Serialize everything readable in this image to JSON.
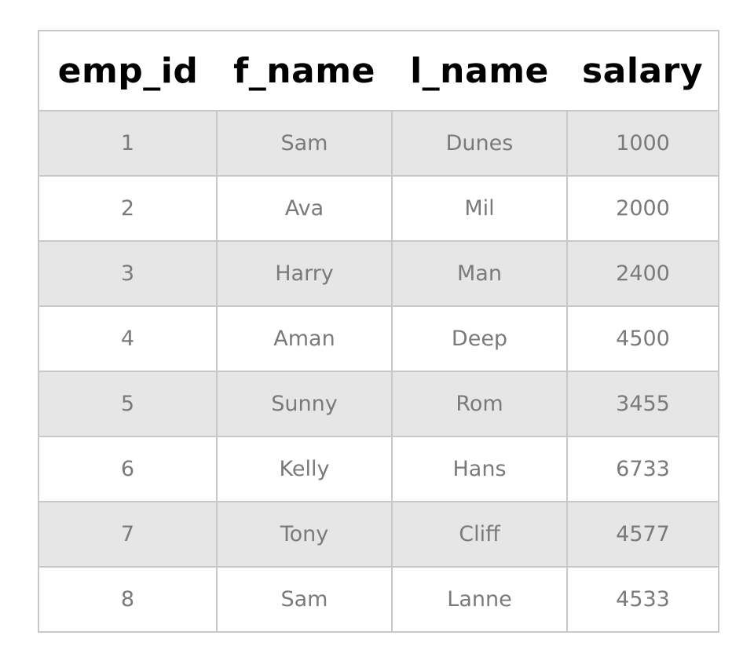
{
  "table": {
    "headers": [
      "emp_id",
      "f_name",
      "l_name",
      "salary"
    ],
    "rows": [
      [
        "1",
        "Sam",
        "Dunes",
        "1000"
      ],
      [
        "2",
        "Ava",
        "Mil",
        "2000"
      ],
      [
        "3",
        "Harry",
        "Man",
        "2400"
      ],
      [
        "4",
        "Aman",
        "Deep",
        "4500"
      ],
      [
        "5",
        "Sunny",
        "Rom",
        "3455"
      ],
      [
        "6",
        "Kelly",
        "Hans",
        "6733"
      ],
      [
        "7",
        "Tony",
        "Cliff",
        "4577"
      ],
      [
        "8",
        "Sam",
        "Lanne",
        "4533"
      ]
    ],
    "colors": {
      "border": "#c8c8c8",
      "row_shaded": "#e6e6e6",
      "row_plain": "#ffffff",
      "header_text": "#000000",
      "cell_text": "#7a7a7a"
    }
  }
}
